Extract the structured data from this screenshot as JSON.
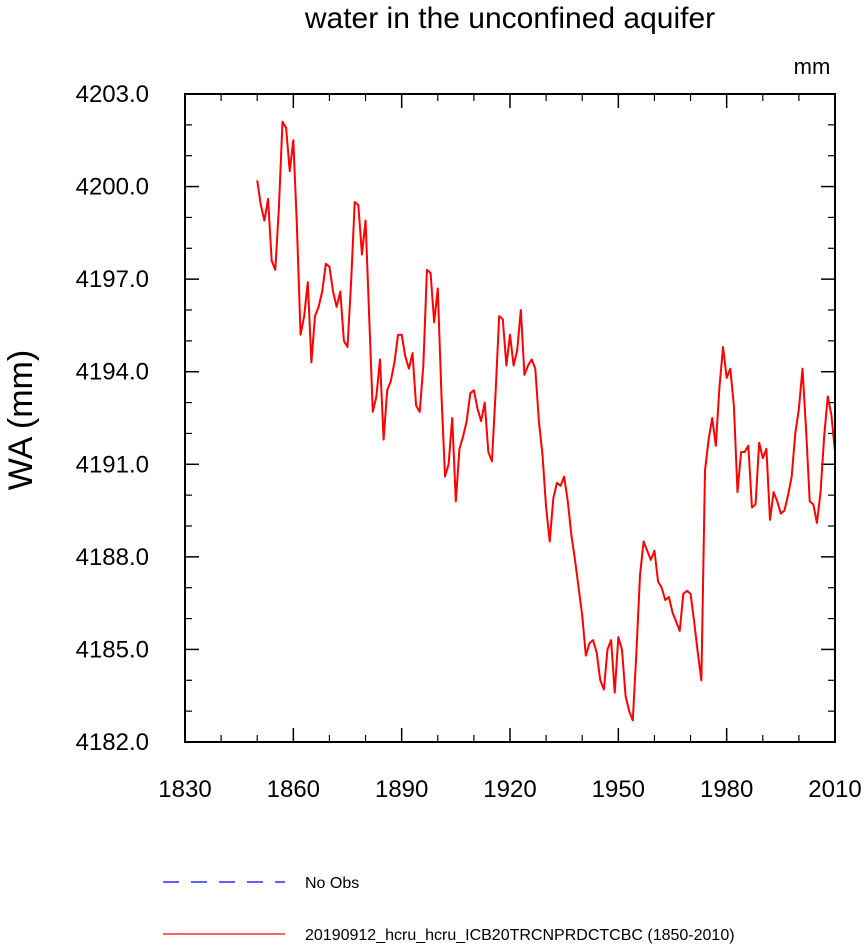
{
  "chart_data": {
    "type": "line",
    "title": "water in the unconfined aquifer",
    "units": "mm",
    "ylabel": "WA  (mm)",
    "xlabel": "",
    "xlim": [
      1830,
      2010
    ],
    "ylim": [
      4182.0,
      4203.0
    ],
    "x_ticks": [
      "1830",
      "1860",
      "1890",
      "1920",
      "1950",
      "1980",
      "2010"
    ],
    "y_ticks": [
      "4182.0",
      "4185.0",
      "4188.0",
      "4191.0",
      "4194.0",
      "4197.0",
      "4200.0",
      "4203.0"
    ],
    "series": [
      {
        "name": "20190912_hcru_hcru_ICB20TRCNPRDCTCBC (1850-2010)",
        "color": "#ff0000",
        "x": [
          1850,
          1851,
          1852,
          1853,
          1854,
          1855,
          1856,
          1857,
          1858,
          1859,
          1860,
          1861,
          1862,
          1863,
          1864,
          1865,
          1866,
          1867,
          1868,
          1869,
          1870,
          1871,
          1872,
          1873,
          1874,
          1875,
          1876,
          1877,
          1878,
          1879,
          1880,
          1881,
          1882,
          1883,
          1884,
          1885,
          1886,
          1887,
          1888,
          1889,
          1890,
          1891,
          1892,
          1893,
          1894,
          1895,
          1896,
          1897,
          1898,
          1899,
          1900,
          1901,
          1902,
          1903,
          1904,
          1905,
          1906,
          1907,
          1908,
          1909,
          1910,
          1911,
          1912,
          1913,
          1914,
          1915,
          1916,
          1917,
          1918,
          1919,
          1920,
          1921,
          1922,
          1923,
          1924,
          1925,
          1926,
          1927,
          1928,
          1929,
          1930,
          1931,
          1932,
          1933,
          1934,
          1935,
          1936,
          1937,
          1938,
          1939,
          1940,
          1941,
          1942,
          1943,
          1944,
          1945,
          1946,
          1947,
          1948,
          1949,
          1950,
          1951,
          1952,
          1953,
          1954,
          1955,
          1956,
          1957,
          1958,
          1959,
          1960,
          1961,
          1962,
          1963,
          1964,
          1965,
          1966,
          1967,
          1968,
          1969,
          1970,
          1971,
          1972,
          1973,
          1974,
          1975,
          1976,
          1977,
          1978,
          1979,
          1980,
          1981,
          1982,
          1983,
          1984,
          1985,
          1986,
          1987,
          1988,
          1989,
          1990,
          1991,
          1992,
          1993,
          1994,
          1995,
          1996,
          1997,
          1998,
          1999,
          2000,
          2001,
          2002,
          2003,
          2004,
          2005,
          2006,
          2007,
          2008,
          2009,
          2010
        ],
        "values": [
          4200.2,
          4199.4,
          4198.9,
          4199.6,
          4197.6,
          4197.3,
          4199.3,
          4202.1,
          4201.9,
          4200.5,
          4201.5,
          4198.7,
          4195.2,
          4195.8,
          4196.9,
          4194.3,
          4195.8,
          4196.1,
          4196.6,
          4197.5,
          4197.4,
          4196.6,
          4196.1,
          4196.6,
          4195.0,
          4194.8,
          4196.9,
          4199.5,
          4199.4,
          4197.8,
          4198.9,
          4195.8,
          4192.7,
          4193.2,
          4194.4,
          4191.8,
          4193.4,
          4193.7,
          4194.3,
          4195.2,
          4195.2,
          4194.5,
          4194.1,
          4194.6,
          4192.9,
          4192.7,
          4194.2,
          4197.3,
          4197.2,
          4195.6,
          4196.7,
          4193.3,
          4190.6,
          4191.0,
          4192.5,
          4189.8,
          4191.5,
          4191.9,
          4192.4,
          4193.3,
          4193.4,
          4192.8,
          4192.4,
          4193.0,
          4191.4,
          4191.1,
          4193.3,
          4195.8,
          4195.7,
          4194.2,
          4195.2,
          4194.2,
          4194.7,
          4196.0,
          4193.9,
          4194.2,
          4194.4,
          4194.1,
          4192.4,
          4191.3,
          4189.6,
          4188.5,
          4189.9,
          4190.4,
          4190.3,
          4190.6,
          4189.8,
          4188.7,
          4187.9,
          4187.0,
          4186.1,
          4184.8,
          4185.2,
          4185.3,
          4184.9,
          4184.0,
          4183.7,
          4185.0,
          4185.3,
          4183.6,
          4185.4,
          4185.0,
          4183.5,
          4183.0,
          4182.7,
          4184.9,
          4187.4,
          4188.5,
          4188.2,
          4187.9,
          4188.2,
          4187.2,
          4187.0,
          4186.6,
          4186.7,
          4186.2,
          4185.9,
          4185.6,
          4186.8,
          4186.9,
          4186.8,
          4185.9,
          4184.9,
          4184.0,
          4190.8,
          4191.8,
          4192.5,
          4191.6,
          4193.5,
          4194.8,
          4193.8,
          4194.1,
          4192.9,
          4190.1,
          4191.4,
          4191.4,
          4191.6,
          4189.6,
          4189.7,
          4191.7,
          4191.2,
          4191.5,
          4189.2,
          4190.1,
          4189.8,
          4189.4,
          4189.5,
          4190.0,
          4190.6,
          4192.0,
          4192.8,
          4194.1,
          4192.1,
          4189.8,
          4189.7,
          4189.1,
          4190.1,
          4191.9,
          4193.2,
          4192.6,
          4191.4
        ]
      }
    ],
    "legend": [
      {
        "label": "No Obs",
        "color": "#0000ff",
        "style": "dashed"
      },
      {
        "label": "20190912_hcru_hcru_ICB20TRCNPRDCTCBC (1850-2010)",
        "color": "#ff0000",
        "style": "solid"
      }
    ]
  }
}
